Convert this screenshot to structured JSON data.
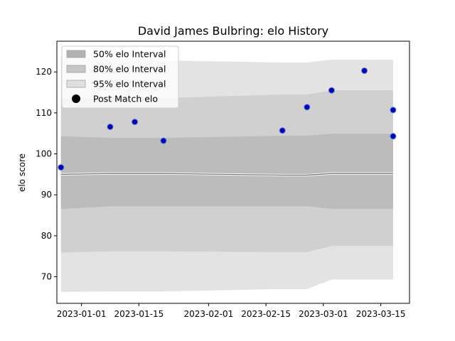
{
  "chart_data": {
    "type": "area",
    "title": "David James Bulbring: elo History",
    "xlabel": "",
    "ylabel": "elo score",
    "x_dates": [
      "2022-12-27",
      "2023-01-08",
      "2023-01-14",
      "2023-01-21",
      "2023-02-19",
      "2023-02-25",
      "2023-03-03",
      "2023-03-11",
      "2023-03-18",
      "2023-03-18"
    ],
    "x_ticks": [
      "2023-01-01",
      "2023-01-15",
      "2023-02-01",
      "2023-02-15",
      "2023-03-01",
      "2023-03-15"
    ],
    "y_ticks": [
      70,
      80,
      90,
      100,
      110,
      120
    ],
    "ylim": [
      63.5,
      127.5
    ],
    "xlim": [
      "2022-12-26",
      "2023-03-22"
    ],
    "mean": [
      95.0,
      95.2,
      95.2,
      95.2,
      94.8,
      94.8,
      95.2,
      95.2,
      95.2,
      95.2
    ],
    "bands": [
      {
        "name": "95% elo Interval",
        "color": "#e4e4e4",
        "lower": [
          66.3,
          66.4,
          66.4,
          66.4,
          67.0,
          67.0,
          69.3,
          69.3,
          69.3,
          69.3
        ],
        "upper": [
          123.5,
          123.3,
          123.0,
          122.8,
          122.3,
          122.3,
          123.0,
          123.0,
          123.0,
          123.0
        ]
      },
      {
        "name": "80% elo Interval",
        "color": "#d0d0d0",
        "lower": [
          75.9,
          76.2,
          76.2,
          76.2,
          76.0,
          76.0,
          77.5,
          77.5,
          77.5,
          77.5
        ],
        "upper": [
          113.5,
          113.5,
          113.5,
          113.6,
          114.5,
          114.5,
          115.5,
          115.5,
          115.5,
          115.5
        ]
      },
      {
        "name": "50% elo Interval",
        "color": "#bdbdbd",
        "lower": [
          86.5,
          87.2,
          87.2,
          87.2,
          87.2,
          87.2,
          86.6,
          86.6,
          86.6,
          86.6
        ],
        "upper": [
          104.3,
          103.9,
          103.9,
          103.9,
          104.4,
          104.4,
          104.9,
          104.9,
          104.9,
          104.9
        ]
      }
    ],
    "points": {
      "name": "Post Match elo",
      "x": [
        "2022-12-27",
        "2023-01-08",
        "2023-01-14",
        "2023-01-21",
        "2023-02-19",
        "2023-02-25",
        "2023-03-03",
        "2023-03-11",
        "2023-03-18",
        "2023-03-18"
      ],
      "y": [
        96.7,
        106.6,
        107.8,
        103.2,
        105.7,
        111.4,
        115.5,
        120.3,
        110.7,
        104.3
      ]
    },
    "legend": {
      "position": "upper-left",
      "entries": [
        "50% elo Interval",
        "80% elo Interval",
        "95% elo Interval",
        "Post Match elo"
      ]
    },
    "grid": false,
    "colors": {
      "band50": "#b2b2b2",
      "band80": "#c6c6c6",
      "band95": "#e0e0e0",
      "mean_line": "#6e6e6e",
      "point_fill": "#0000cc",
      "point_edge": "#5a7fb0"
    }
  }
}
